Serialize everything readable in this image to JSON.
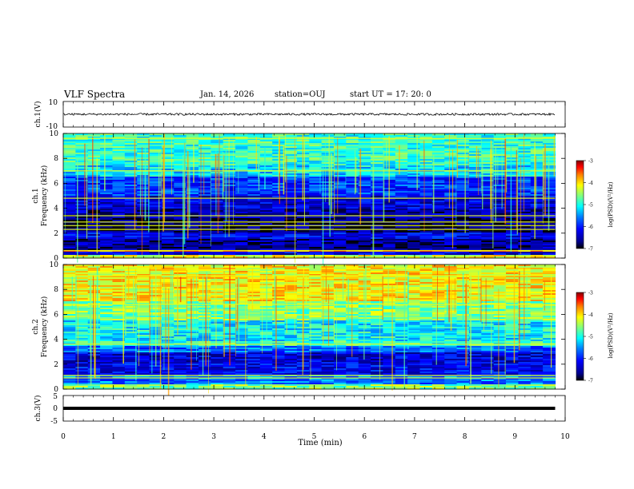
{
  "header": {
    "title": "VLF Spectra",
    "date": "Jan. 14, 2026",
    "station": "station=OUJ",
    "start": "start UT =   17: 20: 0"
  },
  "colors": {
    "trace": "#000000",
    "colormap": [
      "#000000",
      "#00008f",
      "#0000ff",
      "#0080ff",
      "#00ffff",
      "#80ff80",
      "#ffff00",
      "#ff8000",
      "#ff0000",
      "#800000"
    ]
  },
  "chart_data": [
    {
      "type": "line",
      "name": "ch1-waveform",
      "ylabel": "ch.1(V)",
      "ylim": [
        -10,
        10
      ],
      "ytick_labels": [
        "10",
        "-10"
      ],
      "baseline": 0,
      "noise_amplitude": 0.8,
      "x_range_min": [
        0,
        9.8
      ]
    },
    {
      "type": "heatmap",
      "name": "ch1-spectrogram",
      "ylabel_line1": "ch.1",
      "ylabel_line2": "Frequency (kHz)",
      "ylim": [
        0,
        10
      ],
      "ytick_labels": [
        "0",
        "2",
        "4",
        "6",
        "8",
        "10"
      ],
      "colorbar": {
        "label": "log(PSD)(V²/Hz)",
        "range": [
          -7,
          -3
        ],
        "tick_labels": [
          "-3",
          "-4",
          "-5",
          "-6",
          "-7"
        ]
      },
      "bands_khz": [
        {
          "from": 0,
          "to": 0.2,
          "level": -4.2
        },
        {
          "from": 0.2,
          "to": 0.5,
          "level": -6.3
        },
        {
          "from": 0.5,
          "to": 0.7,
          "level": -3.6
        },
        {
          "from": 0.7,
          "to": 1.5,
          "level": -6.6
        },
        {
          "from": 1.5,
          "to": 2.0,
          "level": -6.2
        },
        {
          "from": 2.0,
          "to": 3.2,
          "level": -6.8
        },
        {
          "from": 3.2,
          "to": 4.0,
          "level": -6.5
        },
        {
          "from": 4.0,
          "to": 5.0,
          "level": -6.3
        },
        {
          "from": 5.0,
          "to": 6.5,
          "level": -5.9
        },
        {
          "from": 6.5,
          "to": 7.5,
          "level": -5.2
        },
        {
          "from": 7.5,
          "to": 10,
          "level": -4.9
        }
      ],
      "lines_khz": [
        0.6,
        2.3,
        2.6,
        2.9,
        3.4,
        4.8,
        7.0,
        9.6
      ]
    },
    {
      "type": "heatmap",
      "name": "ch2-spectrogram",
      "ylabel_line1": "ch.2",
      "ylabel_line2": "Frequency (kHz)",
      "ylim": [
        0,
        10
      ],
      "ytick_labels": [
        "0",
        "2",
        "4",
        "6",
        "8",
        "10"
      ],
      "colorbar": {
        "label": "log(PSD)(V²/Hz)",
        "range": [
          -7,
          -3
        ],
        "tick_labels": [
          "-3",
          "-4",
          "-5",
          "-6",
          "-7"
        ]
      },
      "bands_khz": [
        {
          "from": 0,
          "to": 0.4,
          "level": -4.6
        },
        {
          "from": 0.4,
          "to": 1.2,
          "level": -5.6
        },
        {
          "from": 1.2,
          "to": 2.0,
          "level": -6.2
        },
        {
          "from": 2.0,
          "to": 3.0,
          "level": -6.3
        },
        {
          "from": 3.0,
          "to": 3.5,
          "level": -5.7
        },
        {
          "from": 3.5,
          "to": 3.8,
          "level": -4.9
        },
        {
          "from": 3.8,
          "to": 5.5,
          "level": -5.1
        },
        {
          "from": 5.5,
          "to": 7.0,
          "level": -4.6
        },
        {
          "from": 7.0,
          "to": 10,
          "level": -4.1
        }
      ],
      "lines_khz": [
        0.9,
        1.1,
        3.6,
        6.8,
        9.1
      ]
    },
    {
      "type": "line",
      "name": "ch3-level",
      "ylabel": "ch.3(V)",
      "ylim": [
        -5,
        5
      ],
      "ytick_labels": [
        "5",
        "0",
        "-5"
      ],
      "baseline": 0,
      "x_range_min": [
        0,
        9.8
      ]
    }
  ],
  "time_axis": {
    "xlabel": "Time (min)",
    "xlim": [
      0,
      10
    ],
    "tick_labels": [
      "0",
      "1",
      "2",
      "3",
      "4",
      "5",
      "6",
      "7",
      "8",
      "9",
      "10"
    ]
  }
}
